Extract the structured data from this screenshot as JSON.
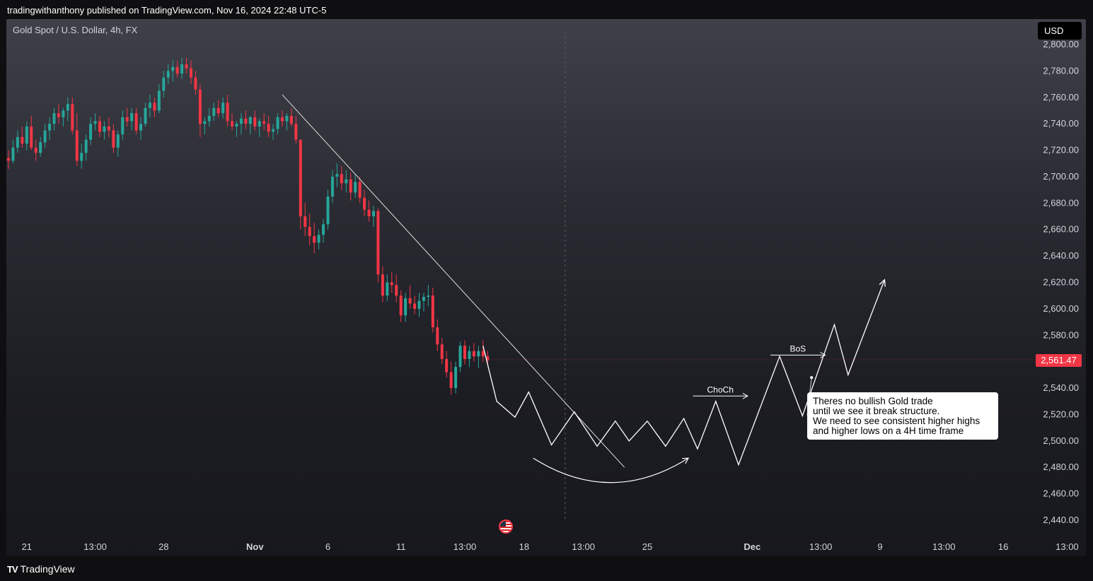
{
  "header": {
    "publisher_line": "tradingwithanthony published on TradingView.com, Nov 16, 2024 22:48 UTC-5"
  },
  "chart_header": {
    "symbol": "Gold Spot / U.S. Dollar, 4h, FX",
    "currency": "USD"
  },
  "last_price": "2,561.47",
  "note": {
    "lines": [
      "Theres no bullish Gold trade",
      "until we see it break structure.",
      "We need to see consistent higher highs",
      "and higher lows on a 4H time frame"
    ]
  },
  "footer": {
    "logo_text": "TV",
    "brand": "TradingView"
  },
  "colors": {
    "up": "#26a69a",
    "down": "#f23645",
    "drawing": "#ffffff",
    "trendline": "#e0e0e0"
  },
  "chart_data": {
    "type": "candlestick",
    "title": "Gold Spot / U.S. Dollar, 4h, FX",
    "ylim": [
      2430,
      2805
    ],
    "y_ticks": [
      2440,
      2460,
      2480,
      2500,
      2520,
      2540,
      2560,
      2580,
      2600,
      2620,
      2640,
      2660,
      2680,
      2700,
      2720,
      2740,
      2760,
      2780,
      2800
    ],
    "y_tick_labels": [
      "2,440.00",
      "2,460.00",
      "2,480.00",
      "2,500.00",
      "2,520.00",
      "2,540.00",
      "2,560.00",
      "2,580.00",
      "2,600.00",
      "2,620.00",
      "2,640.00",
      "2,660.00",
      "2,680.00",
      "2,700.00",
      "2,720.00",
      "2,740.00",
      "2,760.00",
      "2,780.00",
      "2,800.00"
    ],
    "x_tick_labels": [
      {
        "text": "21",
        "bar": 4,
        "bold": false
      },
      {
        "text": "13:00",
        "bar": 19,
        "bold": false
      },
      {
        "text": "28",
        "bar": 34,
        "bold": false
      },
      {
        "text": "Nov",
        "bar": 54,
        "bold": true
      },
      {
        "text": "6",
        "bar": 70,
        "bold": false
      },
      {
        "text": "11",
        "bar": 86,
        "bold": false
      },
      {
        "text": "13:00",
        "bar": 100,
        "bold": false
      },
      {
        "text": "18",
        "bar": 113,
        "bold": false
      },
      {
        "text": "13:00",
        "bar": 126,
        "bold": false
      },
      {
        "text": "25",
        "bar": 140,
        "bold": false
      },
      {
        "text": "Dec",
        "bar": 163,
        "bold": true
      },
      {
        "text": "13:00",
        "bar": 178,
        "bold": false
      },
      {
        "text": "9",
        "bar": 191,
        "bold": false
      },
      {
        "text": "13:00",
        "bar": 205,
        "bold": false
      },
      {
        "text": "16",
        "bar": 218,
        "bold": false
      },
      {
        "text": "13:00",
        "bar": 232,
        "bold": false
      }
    ],
    "candles": [
      [
        2714,
        2720,
        2706,
        2712
      ],
      [
        2712,
        2728,
        2710,
        2722
      ],
      [
        2722,
        2735,
        2718,
        2730
      ],
      [
        2730,
        2738,
        2722,
        2725
      ],
      [
        2725,
        2742,
        2720,
        2738
      ],
      [
        2738,
        2746,
        2720,
        2722
      ],
      [
        2722,
        2728,
        2712,
        2718
      ],
      [
        2718,
        2730,
        2715,
        2726
      ],
      [
        2726,
        2740,
        2722,
        2735
      ],
      [
        2735,
        2745,
        2728,
        2740
      ],
      [
        2740,
        2752,
        2735,
        2748
      ],
      [
        2748,
        2755,
        2740,
        2745
      ],
      [
        2745,
        2752,
        2738,
        2750
      ],
      [
        2750,
        2760,
        2742,
        2755
      ],
      [
        2755,
        2760,
        2732,
        2735
      ],
      [
        2735,
        2748,
        2708,
        2712
      ],
      [
        2712,
        2725,
        2706,
        2718
      ],
      [
        2718,
        2732,
        2712,
        2728
      ],
      [
        2728,
        2745,
        2724,
        2740
      ],
      [
        2740,
        2748,
        2735,
        2742
      ],
      [
        2742,
        2746,
        2730,
        2734
      ],
      [
        2734,
        2742,
        2728,
        2738
      ],
      [
        2738,
        2745,
        2730,
        2735
      ],
      [
        2735,
        2740,
        2718,
        2722
      ],
      [
        2722,
        2735,
        2715,
        2732
      ],
      [
        2732,
        2750,
        2728,
        2745
      ],
      [
        2745,
        2752,
        2738,
        2742
      ],
      [
        2742,
        2752,
        2735,
        2748
      ],
      [
        2748,
        2752,
        2732,
        2735
      ],
      [
        2735,
        2745,
        2728,
        2740
      ],
      [
        2740,
        2756,
        2738,
        2752
      ],
      [
        2752,
        2762,
        2745,
        2756
      ],
      [
        2756,
        2760,
        2745,
        2750
      ],
      [
        2750,
        2770,
        2748,
        2765
      ],
      [
        2765,
        2780,
        2760,
        2775
      ],
      [
        2775,
        2785,
        2770,
        2780
      ],
      [
        2780,
        2788,
        2772,
        2783
      ],
      [
        2783,
        2788,
        2775,
        2778
      ],
      [
        2778,
        2790,
        2774,
        2785
      ],
      [
        2785,
        2790,
        2778,
        2782
      ],
      [
        2782,
        2788,
        2770,
        2775
      ],
      [
        2775,
        2780,
        2762,
        2766
      ],
      [
        2766,
        2770,
        2730,
        2740
      ],
      [
        2740,
        2745,
        2732,
        2742
      ],
      [
        2742,
        2752,
        2738,
        2746
      ],
      [
        2746,
        2756,
        2742,
        2752
      ],
      [
        2752,
        2758,
        2745,
        2748
      ],
      [
        2748,
        2760,
        2744,
        2756
      ],
      [
        2756,
        2762,
        2738,
        2742
      ],
      [
        2742,
        2748,
        2735,
        2738
      ],
      [
        2738,
        2742,
        2730,
        2740
      ],
      [
        2740,
        2748,
        2732,
        2744
      ],
      [
        2744,
        2750,
        2736,
        2740
      ],
      [
        2740,
        2746,
        2732,
        2745
      ],
      [
        2745,
        2750,
        2735,
        2738
      ],
      [
        2738,
        2744,
        2730,
        2742
      ],
      [
        2742,
        2748,
        2735,
        2740
      ],
      [
        2740,
        2746,
        2730,
        2734
      ],
      [
        2734,
        2740,
        2728,
        2736
      ],
      [
        2736,
        2748,
        2732,
        2745
      ],
      [
        2745,
        2750,
        2738,
        2742
      ],
      [
        2742,
        2748,
        2735,
        2746
      ],
      [
        2746,
        2752,
        2738,
        2740
      ],
      [
        2740,
        2746,
        2725,
        2728
      ],
      [
        2728,
        2726,
        2660,
        2670
      ],
      [
        2670,
        2680,
        2655,
        2662
      ],
      [
        2662,
        2672,
        2648,
        2655
      ],
      [
        2655,
        2665,
        2642,
        2650
      ],
      [
        2650,
        2660,
        2645,
        2656
      ],
      [
        2656,
        2668,
        2650,
        2664
      ],
      [
        2664,
        2690,
        2660,
        2685
      ],
      [
        2685,
        2705,
        2680,
        2700
      ],
      [
        2700,
        2710,
        2692,
        2702
      ],
      [
        2702,
        2708,
        2690,
        2695
      ],
      [
        2695,
        2705,
        2688,
        2698
      ],
      [
        2698,
        2703,
        2682,
        2688
      ],
      [
        2688,
        2702,
        2684,
        2696
      ],
      [
        2696,
        2700,
        2680,
        2684
      ],
      [
        2684,
        2690,
        2670,
        2675
      ],
      [
        2675,
        2682,
        2666,
        2670
      ],
      [
        2670,
        2678,
        2662,
        2674
      ],
      [
        2674,
        2676,
        2620,
        2626
      ],
      [
        2626,
        2632,
        2605,
        2610
      ],
      [
        2610,
        2626,
        2606,
        2620
      ],
      [
        2620,
        2628,
        2612,
        2618
      ],
      [
        2618,
        2626,
        2605,
        2610
      ],
      [
        2610,
        2614,
        2590,
        2595
      ],
      [
        2595,
        2612,
        2590,
        2608
      ],
      [
        2608,
        2618,
        2600,
        2604
      ],
      [
        2604,
        2610,
        2596,
        2600
      ],
      [
        2600,
        2612,
        2594,
        2606
      ],
      [
        2606,
        2612,
        2598,
        2609
      ],
      [
        2609,
        2618,
        2602,
        2610
      ],
      [
        2610,
        2616,
        2582,
        2586
      ],
      [
        2586,
        2592,
        2568,
        2573
      ],
      [
        2573,
        2578,
        2558,
        2562
      ],
      [
        2562,
        2568,
        2548,
        2552
      ],
      [
        2552,
        2560,
        2535,
        2540
      ],
      [
        2540,
        2560,
        2536,
        2556
      ],
      [
        2556,
        2575,
        2552,
        2572
      ],
      [
        2572,
        2576,
        2558,
        2562
      ],
      [
        2562,
        2572,
        2556,
        2568
      ],
      [
        2568,
        2574,
        2560,
        2564
      ],
      [
        2564,
        2572,
        2555,
        2568
      ],
      [
        2568,
        2576,
        2560,
        2564
      ],
      [
        2564,
        2568,
        2558,
        2561
      ]
    ],
    "trendline": [
      [
        2762,
        60
      ],
      [
        2480,
        135
      ]
    ],
    "projection_path": [
      [
        104,
        2572
      ],
      [
        107,
        2530
      ],
      [
        111,
        2518
      ],
      [
        114,
        2537
      ],
      [
        119,
        2497
      ],
      [
        124,
        2522
      ],
      [
        129,
        2496
      ],
      [
        133,
        2515
      ],
      [
        136,
        2500
      ],
      [
        140,
        2515
      ],
      [
        144,
        2496
      ],
      [
        148,
        2517
      ],
      [
        151,
        2494
      ],
      [
        155,
        2530
      ],
      [
        160,
        2482
      ],
      [
        169,
        2564
      ],
      [
        174,
        2519
      ],
      [
        181,
        2588
      ],
      [
        184,
        2550
      ],
      [
        192,
        2622
      ]
    ],
    "annotations": [
      {
        "text": "ChoCh",
        "arrow": [
          [
            150,
            2534
          ],
          [
            162,
            2534
          ]
        ]
      },
      {
        "text": "BoS",
        "arrow": [
          [
            167,
            2565
          ],
          [
            179,
            2565
          ]
        ]
      }
    ],
    "curve_arrow": {
      "start": [
        115,
        2487
      ],
      "control": [
        132,
        2450
      ],
      "end": [
        149,
        2487
      ]
    },
    "note_connector": {
      "from": [
        176,
        2548
      ],
      "to": [
        190,
        2520
      ]
    },
    "event_marker_bar": 122
  }
}
